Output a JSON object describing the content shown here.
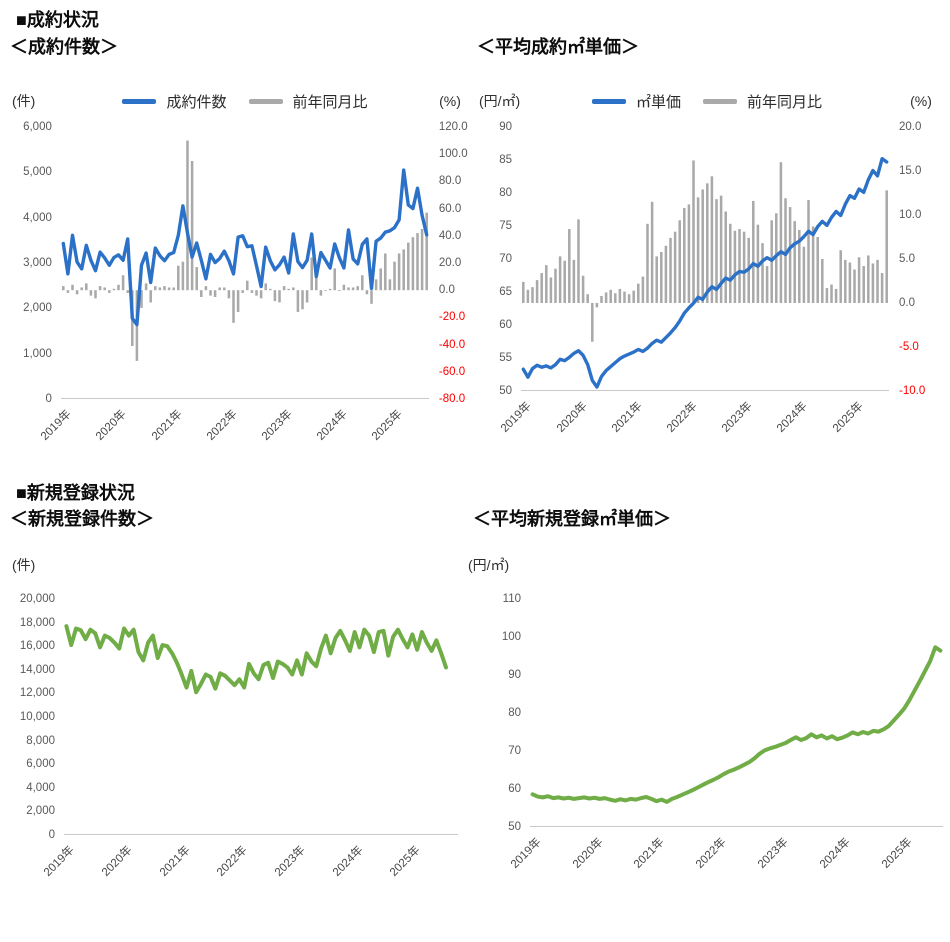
{
  "sections": [
    {
      "title": "■成約状況"
    },
    {
      "title": "■新規登録状況"
    }
  ],
  "colors": {
    "line_blue": "#2B71C8",
    "bar_gray": "#A9A9A9",
    "line_green": "#70AD47",
    "tick_text": "#595959",
    "tick_negative": "#FF0000",
    "axis_line": "#C9C9C9"
  },
  "chart_data": [
    {
      "id": "contract-count",
      "type": "line+bar",
      "title": "＜成約件数＞",
      "left_axis": {
        "unit": "(件)",
        "min": 0,
        "max": 6000,
        "ticks": [
          "6,000",
          "5,000",
          "4,000",
          "3,000",
          "2,000",
          "1,000",
          "0"
        ]
      },
      "right_axis": {
        "unit": "(%)",
        "min": -80,
        "max": 120,
        "ticks": [
          "120.0",
          "100.0",
          "80.0",
          "60.0",
          "40.0",
          "20.0",
          "0.0",
          "-20.0",
          "-40.0",
          "-60.0",
          "-80.0"
        ]
      },
      "x_axis": {
        "start": "2019-01",
        "freq": "monthly",
        "n_points": 80,
        "ticks": [
          "2019年",
          "2020年",
          "2021年",
          "2022年",
          "2023年",
          "2024年",
          "2025年"
        ]
      },
      "legend": [
        {
          "label": "成約件数",
          "color": "#2B71C8"
        },
        {
          "label": "前年同月比",
          "color": "#A9A9A9"
        }
      ],
      "series": [
        {
          "name": "前年同月比",
          "type": "bar",
          "axis": "right",
          "color": "#A9A9A9",
          "values": [
            3,
            -2,
            4,
            -3,
            2,
            5,
            -4,
            -6,
            3,
            2,
            -2,
            1,
            4,
            11,
            -2,
            -41,
            -52,
            -13,
            5,
            -9,
            3,
            2,
            3,
            2,
            2,
            18,
            21,
            110,
            95,
            17,
            -5,
            3,
            -4,
            -5,
            2,
            2,
            -6,
            -24,
            -16,
            -2,
            7,
            -2,
            -4,
            -6,
            5,
            1,
            -8,
            -9,
            3,
            1,
            2,
            -16,
            -14,
            -9,
            24,
            9,
            -4,
            0,
            1,
            16,
            0,
            4,
            2,
            2,
            3,
            11,
            -3,
            -10,
            8,
            16,
            27,
            8,
            21,
            27,
            30,
            35,
            39,
            42,
            45,
            57
          ]
        },
        {
          "name": "成約件数",
          "type": "line",
          "axis": "left",
          "color": "#2B71C8",
          "values": [
            3430,
            2760,
            3610,
            3020,
            2870,
            3390,
            3060,
            2830,
            3240,
            3110,
            2950,
            3120,
            3180,
            3060,
            3530,
            1780,
            1640,
            2950,
            3220,
            2570,
            3330,
            3160,
            3050,
            3190,
            3230,
            3610,
            4260,
            3660,
            3130,
            3440,
            3060,
            2650,
            3190,
            3010,
            3100,
            3260,
            3050,
            2760,
            3570,
            3600,
            3360,
            3380,
            2940,
            2480,
            3350,
            3050,
            2850,
            2960,
            3130,
            2780,
            3640,
            3030,
            2900,
            3060,
            3640,
            2700,
            3230,
            3060,
            2890,
            3420,
            3120,
            2890,
            3730,
            3090,
            2980,
            3410,
            3530,
            2440,
            3480,
            3550,
            3680,
            3710,
            3780,
            3950,
            5050,
            4280,
            4200,
            4650,
            4050,
            3620
          ]
        }
      ]
    },
    {
      "id": "contract-unit-price",
      "type": "line+bar",
      "title": "＜平均成約㎡単価＞",
      "left_axis": {
        "unit": "(円/㎡)",
        "min": 50,
        "max": 90,
        "ticks": [
          "90",
          "85",
          "80",
          "75",
          "70",
          "65",
          "60",
          "55",
          "50"
        ]
      },
      "right_axis": {
        "unit": "(%)",
        "min": -10,
        "max": 20,
        "ticks": [
          "20.0",
          "15.0",
          "10.0",
          "5.0",
          "0.0",
          "-5.0",
          "-10.0"
        ]
      },
      "x_axis": {
        "start": "2019-01",
        "freq": "monthly",
        "n_points": 80,
        "ticks": [
          "2019年",
          "2020年",
          "2021年",
          "2022年",
          "2023年",
          "2024年",
          "2025年"
        ]
      },
      "legend": [
        {
          "label": "㎡単価",
          "color": "#2B71C8"
        },
        {
          "label": "前年同月比",
          "color": "#A9A9A9"
        }
      ],
      "series": [
        {
          "name": "前年同月比",
          "type": "bar",
          "axis": "right",
          "color": "#A9A9A9",
          "values": [
            2.4,
            1.5,
            1.8,
            2.6,
            3.4,
            4.3,
            2.9,
            3.9,
            5.3,
            4.8,
            8.4,
            4.9,
            9.5,
            3.1,
            1.0,
            -4.4,
            -0.5,
            0.8,
            1.2,
            1.5,
            1.1,
            1.6,
            1.3,
            1.0,
            1.4,
            2.2,
            3.0,
            9.0,
            11.5,
            5.3,
            5.8,
            6.5,
            7.4,
            8.1,
            9.4,
            10.8,
            11.2,
            16.2,
            12.0,
            12.9,
            13.6,
            14.4,
            11.8,
            12.2,
            10.4,
            9.0,
            8.2,
            8.4,
            8.1,
            7.4,
            11.6,
            8.9,
            6.8,
            4.2,
            9.4,
            10.2,
            16.0,
            11.9,
            10.9,
            9.3,
            8.3,
            6.4,
            11.7,
            8.7,
            7.5,
            5.0,
            1.7,
            2.1,
            1.6,
            6.0,
            4.9,
            4.6,
            3.8,
            5.2,
            4.2,
            5.4,
            4.5,
            4.9,
            3.4,
            12.8
          ]
        },
        {
          "name": "㎡単価",
          "type": "line",
          "axis": "left",
          "color": "#2B71C8",
          "values": [
            53.3,
            52.1,
            53.4,
            53.9,
            53.6,
            53.8,
            53.5,
            54.0,
            54.8,
            54.6,
            55.1,
            55.7,
            56.1,
            55.4,
            54.0,
            51.6,
            50.6,
            52.2,
            53.1,
            53.7,
            54.3,
            54.9,
            55.3,
            55.6,
            55.9,
            56.3,
            56.0,
            56.5,
            57.2,
            57.7,
            57.4,
            58.1,
            58.8,
            59.6,
            60.6,
            61.8,
            62.6,
            63.3,
            64.2,
            63.9,
            65.0,
            65.8,
            65.4,
            66.3,
            67.1,
            66.8,
            67.6,
            68.1,
            68.0,
            68.5,
            69.3,
            68.9,
            69.7,
            70.2,
            69.8,
            70.5,
            71.1,
            70.7,
            71.7,
            72.3,
            72.7,
            73.4,
            74.2,
            73.7,
            74.9,
            75.7,
            75.1,
            76.3,
            77.2,
            76.6,
            78.3,
            79.6,
            79.2,
            80.6,
            80.1,
            82.0,
            83.4,
            82.6,
            85.2,
            84.7
          ]
        }
      ]
    },
    {
      "id": "new-listing-count",
      "type": "line",
      "title": "＜新規登録件数＞",
      "left_axis": {
        "unit": "(件)",
        "min": 0,
        "max": 20000,
        "ticks": [
          "20,000",
          "18,000",
          "16,000",
          "14,000",
          "12,000",
          "10,000",
          "8,000",
          "6,000",
          "4,000",
          "2,000",
          "0"
        ]
      },
      "x_axis": {
        "start": "2019-01",
        "freq": "monthly",
        "n_points": 82,
        "ticks": [
          "2019年",
          "2020年",
          "2021年",
          "2022年",
          "2023年",
          "2024年",
          "2025年"
        ]
      },
      "series": [
        {
          "name": "新規登録件数",
          "type": "line",
          "axis": "left",
          "color": "#70AD47",
          "values": [
            17700,
            16100,
            17500,
            17350,
            16600,
            17400,
            17100,
            15900,
            16900,
            16700,
            16300,
            15800,
            17500,
            16900,
            17400,
            15500,
            14800,
            16300,
            16900,
            15000,
            16100,
            16000,
            15400,
            14600,
            13600,
            12500,
            13900,
            12100,
            12800,
            13600,
            13400,
            12400,
            13700,
            13500,
            13100,
            12700,
            13200,
            12500,
            14500,
            13700,
            13200,
            14400,
            14600,
            13300,
            14700,
            14500,
            14200,
            13600,
            14800,
            13600,
            15400,
            14700,
            14300,
            15800,
            16900,
            15400,
            16700,
            17300,
            16500,
            15600,
            17200,
            15900,
            17400,
            16900,
            15500,
            17200,
            17300,
            15200,
            16800,
            17400,
            16600,
            15900,
            17000,
            15700,
            17200,
            16300,
            15600,
            16500,
            15400,
            14200,
            null,
            14350
          ]
        }
      ]
    },
    {
      "id": "new-listing-unit-price",
      "type": "line",
      "title": "＜平均新規登録㎡単価＞",
      "left_axis": {
        "unit": "(円/㎡)",
        "min": 50,
        "max": 110,
        "ticks": [
          "110",
          "100",
          "90",
          "80",
          "70",
          "60",
          "50"
        ]
      },
      "x_axis": {
        "start": "2019-01",
        "freq": "monthly",
        "n_points": 80,
        "ticks": [
          "2019年",
          "2020年",
          "2021年",
          "2022年",
          "2023年",
          "2024年",
          "2025年"
        ]
      },
      "series": [
        {
          "name": "新規登録㎡単価",
          "type": "line",
          "axis": "left",
          "color": "#70AD47",
          "values": [
            58.6,
            58.0,
            57.8,
            58.1,
            57.6,
            57.8,
            57.5,
            57.7,
            57.4,
            57.6,
            57.8,
            57.5,
            57.7,
            57.4,
            57.6,
            57.2,
            56.9,
            57.3,
            57.0,
            57.4,
            57.2,
            57.6,
            57.9,
            57.4,
            56.8,
            57.2,
            56.6,
            57.4,
            57.9,
            58.5,
            59.1,
            59.7,
            60.4,
            61.1,
            61.8,
            62.4,
            63.1,
            63.9,
            64.6,
            65.1,
            65.7,
            66.4,
            67.1,
            68.1,
            69.3,
            70.2,
            70.7,
            71.1,
            71.6,
            72.1,
            72.9,
            73.6,
            72.9,
            73.4,
            74.4,
            73.6,
            74.1,
            73.3,
            73.9,
            73.1,
            73.5,
            74.1,
            74.9,
            74.4,
            75.0,
            74.6,
            75.3,
            75.1,
            75.7,
            76.6,
            78.1,
            79.6,
            81.2,
            83.4,
            85.9,
            88.4,
            91.0,
            93.6,
            97.3,
            96.4
          ]
        }
      ]
    }
  ]
}
